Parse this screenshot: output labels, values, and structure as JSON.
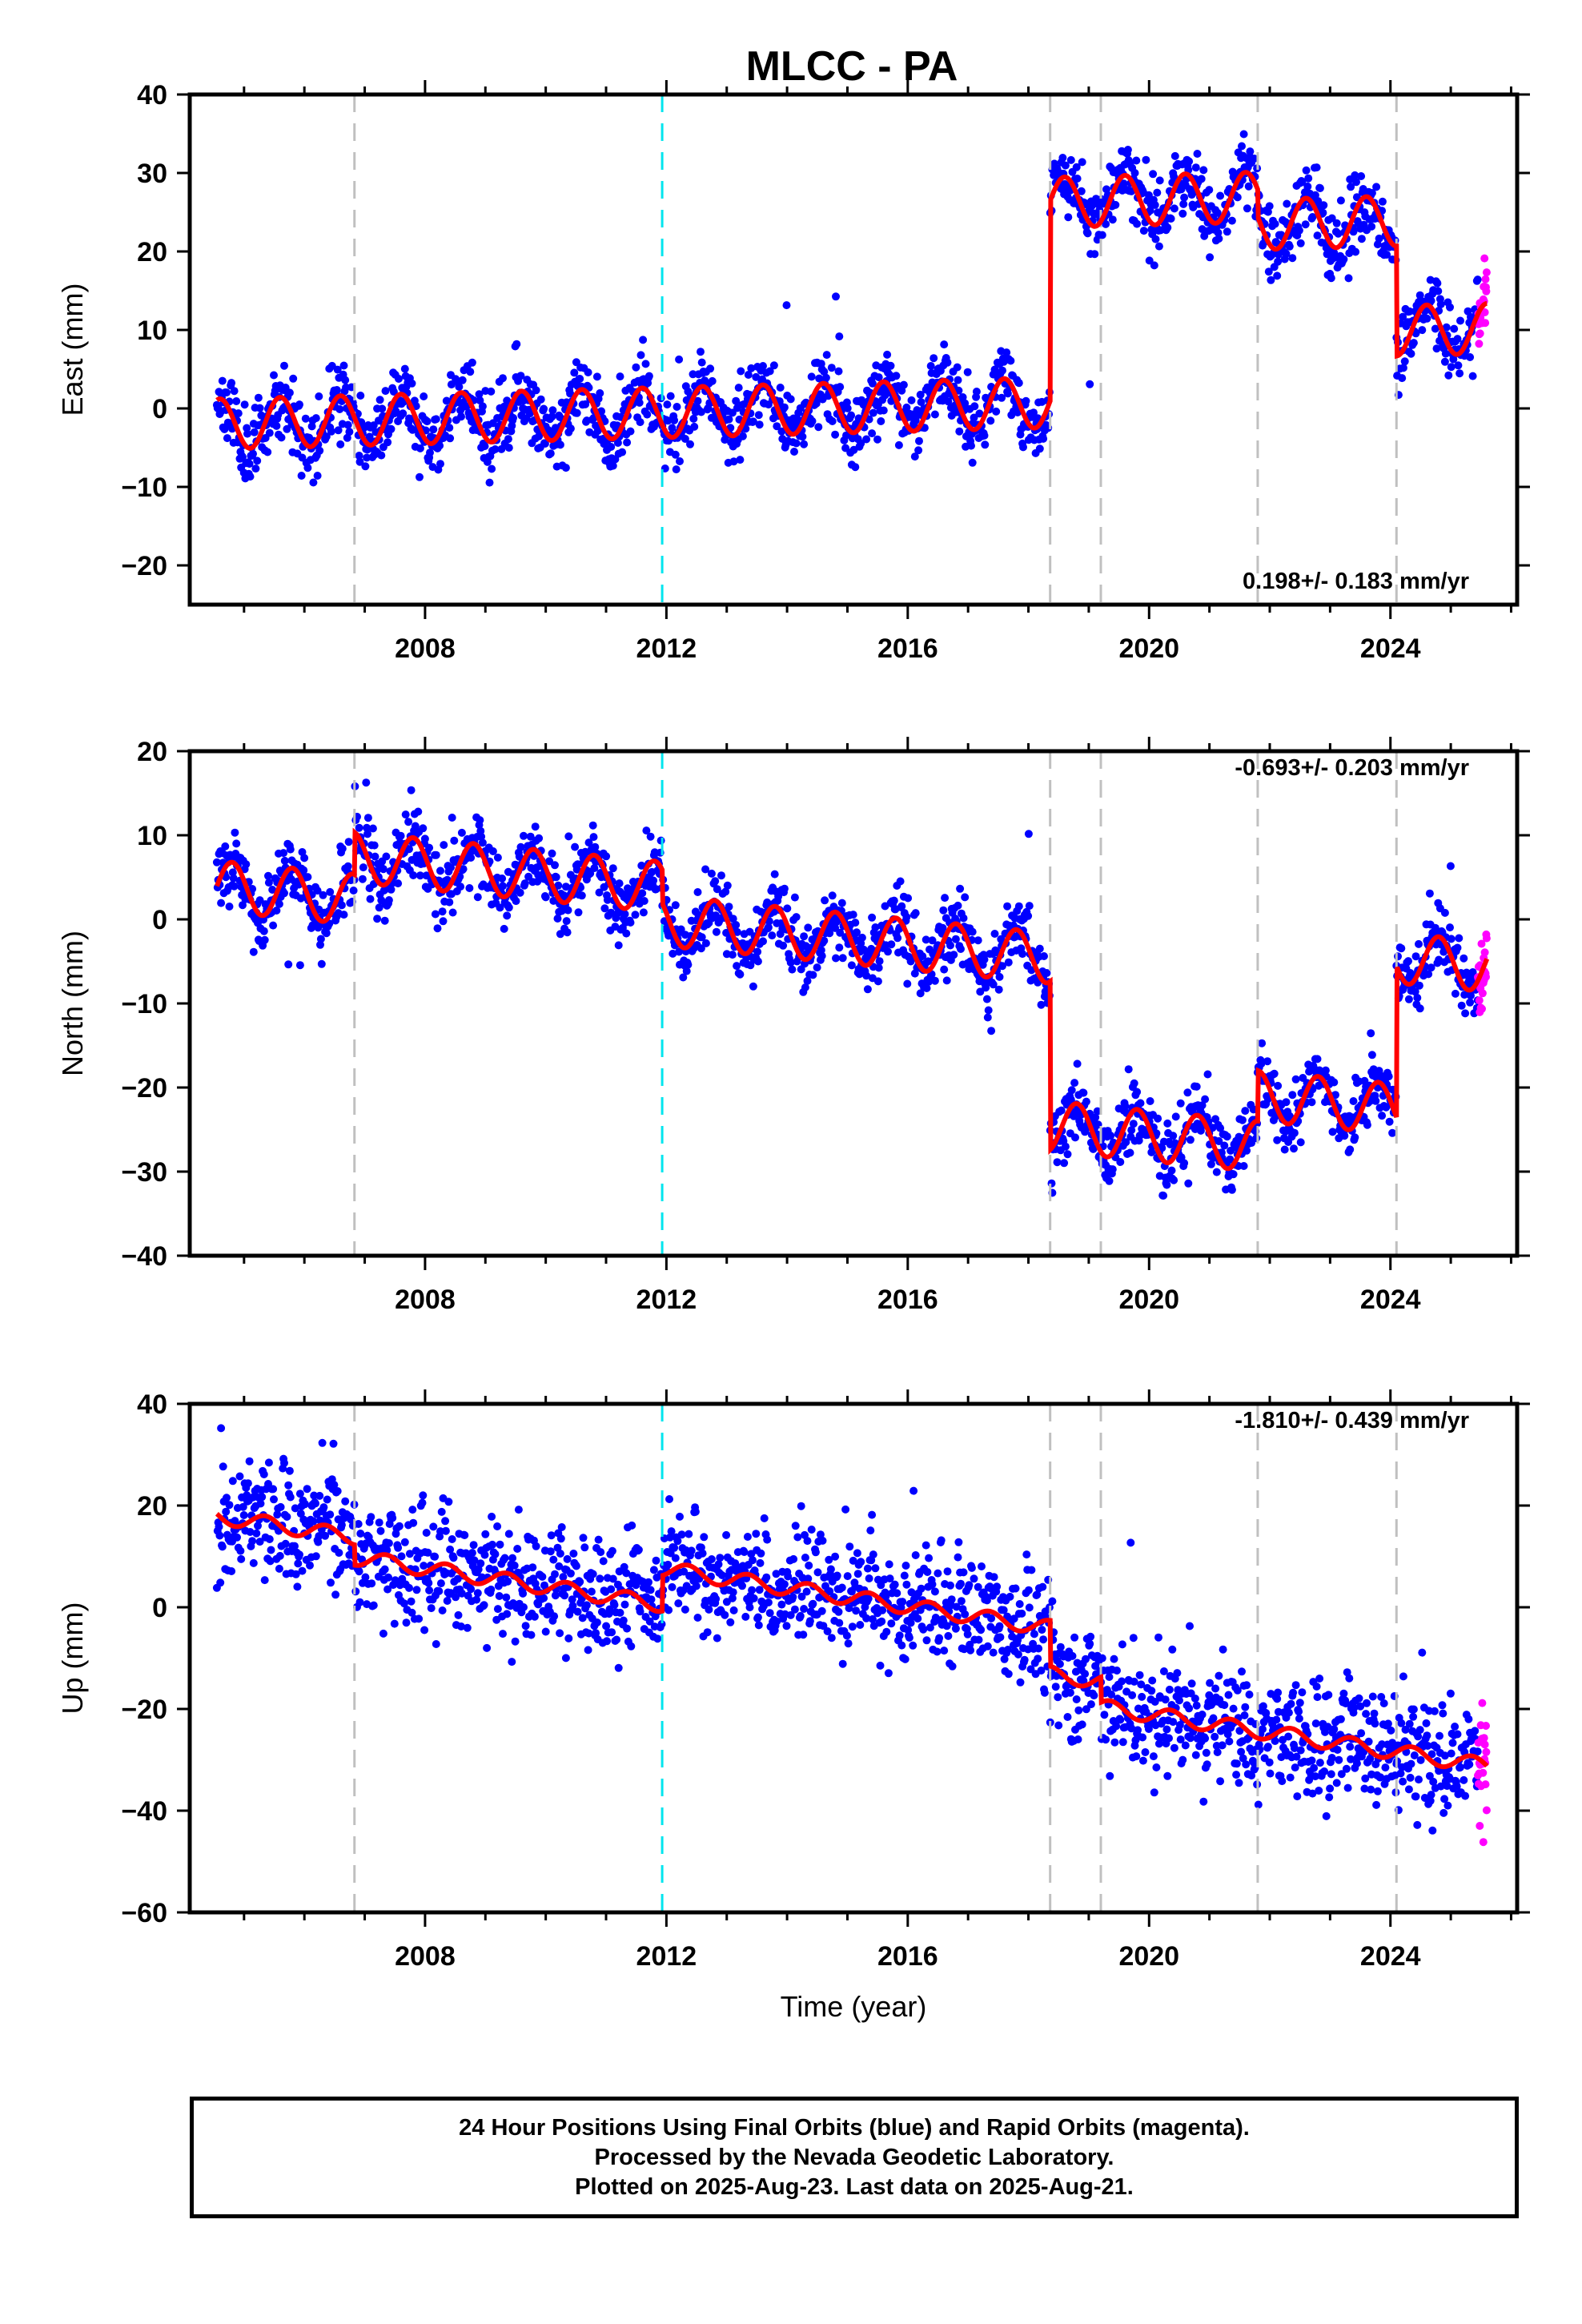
{
  "title": "MLCC - PA",
  "footer": {
    "line1": "24 Hour Positions Using Final Orbits (blue) and Rapid Orbits (magenta).",
    "line2": "Processed by the Nevada Geodetic Laboratory.",
    "line3": "Plotted on 2025-Aug-23. Last data on 2025-Aug-21."
  },
  "colors": {
    "final": "#0000ff",
    "rapid": "#ff00ff",
    "model": "#ff0000",
    "equipment_change": "#c0c0c0",
    "earthquake": "#00e5ee"
  },
  "chart_data": [
    {
      "type": "scatter",
      "ylabel": "East (mm)",
      "xlim": [
        2004.1,
        2026.1
      ],
      "ylim": [
        -25,
        40
      ],
      "xticks": [
        2008,
        2012,
        2016,
        2020,
        2024
      ],
      "yticks": [
        -20,
        -10,
        0,
        10,
        20,
        30,
        40
      ],
      "rate_text": "0.198+/- 0.183 mm/yr",
      "rate_pos": "bottom-right",
      "equipment_changes": [
        2006.83,
        2018.36,
        2019.2,
        2021.8,
        2024.1
      ],
      "earthquakes": [
        2011.93
      ],
      "model": {
        "x0": 2004.5,
        "base": -2,
        "trend": 0.198,
        "amplitude": 3.2,
        "phase": 0.35,
        "offsets": [
          {
            "t": 2006.83,
            "d": 0
          },
          {
            "t": 2018.36,
            "d": 25.5
          },
          {
            "t": 2021.8,
            "d": -3.5
          },
          {
            "t": 2024.1,
            "d": -14
          }
        ]
      },
      "final_range": [
        2004.55,
        2025.45
      ],
      "rapid_range": [
        2025.45,
        2025.6
      ],
      "noise": 2.2,
      "seed": 11
    },
    {
      "type": "scatter",
      "ylabel": "North (mm)",
      "xlim": [
        2004.1,
        2026.1
      ],
      "ylim": [
        -40,
        20
      ],
      "xticks": [
        2008,
        2012,
        2016,
        2020,
        2024
      ],
      "yticks": [
        -40,
        -30,
        -20,
        -10,
        0,
        10,
        20
      ],
      "rate_text": "-0.693+/- 0.203 mm/yr",
      "rate_pos": "top-right",
      "equipment_changes": [
        2006.83,
        2018.36,
        2019.2,
        2021.8,
        2024.1
      ],
      "earthquakes": [
        2011.93
      ],
      "model": {
        "x0": 2004.5,
        "base": 4,
        "trend": -0.693,
        "amplitude": 3.0,
        "phase": 0.55,
        "offsets": [
          {
            "t": 2006.83,
            "d": 5
          },
          {
            "t": 2011.93,
            "d": -4
          },
          {
            "t": 2018.36,
            "d": -20
          },
          {
            "t": 2021.8,
            "d": 6
          },
          {
            "t": 2024.1,
            "d": 18
          }
        ]
      },
      "final_range": [
        2004.55,
        2025.45
      ],
      "rapid_range": [
        2025.45,
        2025.6
      ],
      "noise": 2.0,
      "seed": 29
    },
    {
      "type": "scatter",
      "ylabel": "Up (mm)",
      "xlabel": "Time (year)",
      "xlim": [
        2004.1,
        2026.1
      ],
      "ylim": [
        -60,
        40
      ],
      "xticks": [
        2008,
        2012,
        2016,
        2020,
        2024
      ],
      "yticks": [
        -60,
        -40,
        -20,
        0,
        20,
        40
      ],
      "rate_text": "-1.810+/- 0.439 mm/yr",
      "rate_pos": "top-right",
      "equipment_changes": [
        2006.83,
        2018.36,
        2019.2,
        2021.8,
        2024.1
      ],
      "earthquakes": [
        2011.93
      ],
      "model": {
        "x0": 2004.5,
        "base": 18,
        "trend": -1.81,
        "amplitude": 1.5,
        "phase": 0.1,
        "offsets": [
          {
            "t": 2006.83,
            "d": -4
          },
          {
            "t": 2011.93,
            "d": 7
          },
          {
            "t": 2018.36,
            "d": -9
          },
          {
            "t": 2019.2,
            "d": -5
          }
        ]
      },
      "final_range": [
        2004.55,
        2025.45
      ],
      "rapid_range": [
        2025.45,
        2025.6
      ],
      "noise": 5.5,
      "seed": 47
    }
  ]
}
